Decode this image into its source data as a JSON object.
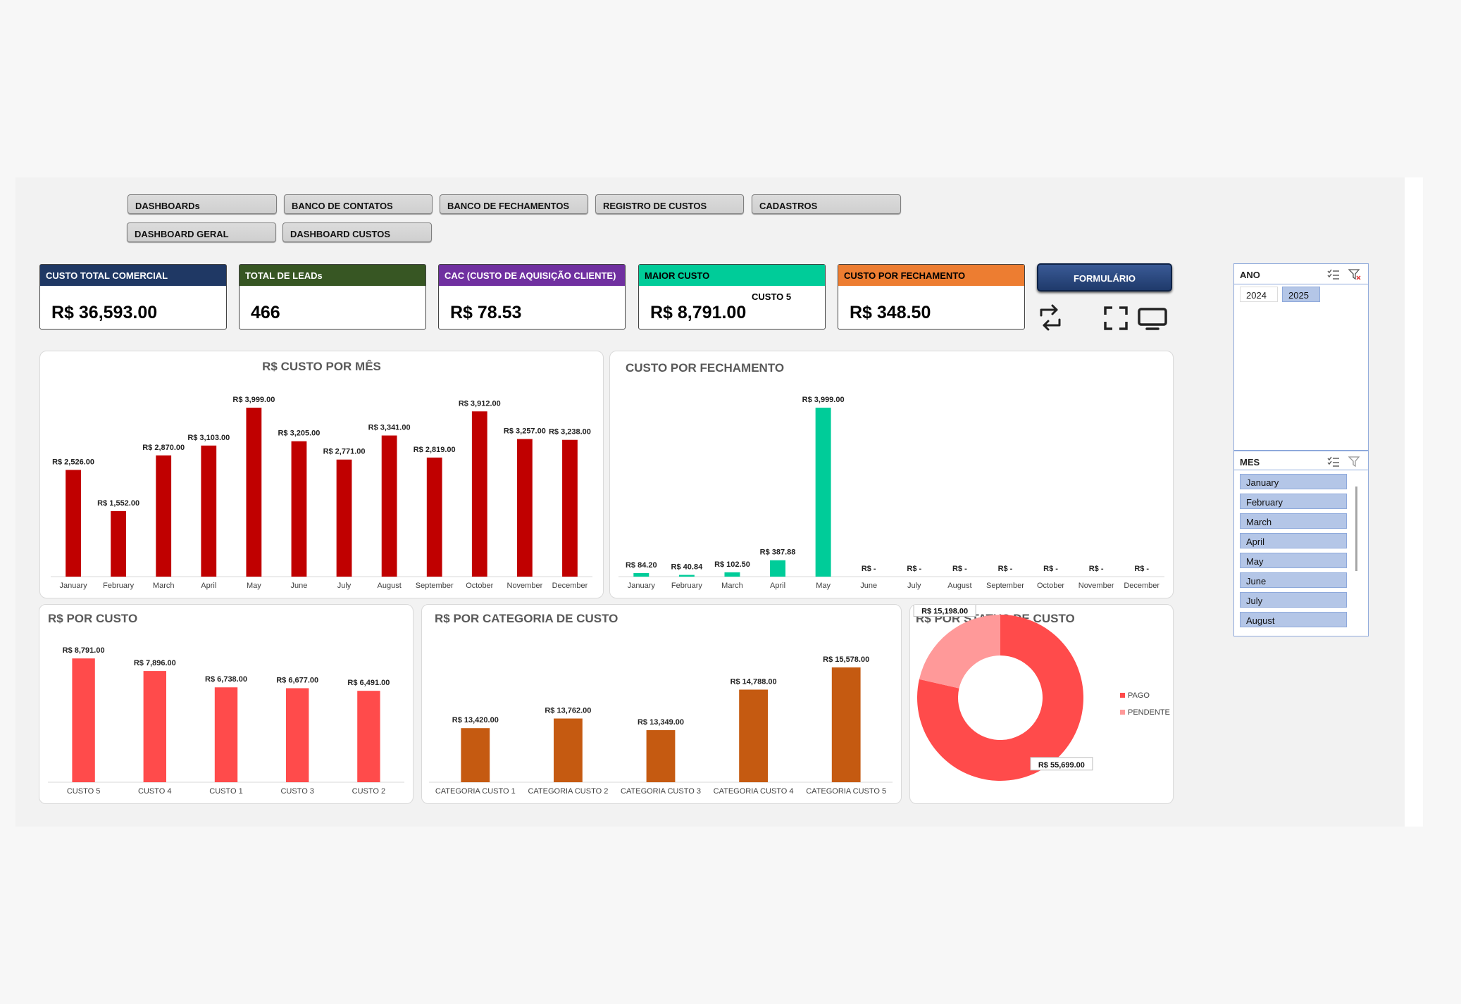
{
  "nav": {
    "row1": [
      "DASHBOARDs",
      "BANCO DE CONTATOS",
      "BANCO DE FECHAMENTOS",
      "REGISTRO DE CUSTOS",
      "CADASTROS"
    ],
    "row2": [
      "DASHBOARD GERAL",
      "DASHBOARD CUSTOS"
    ]
  },
  "kpis": [
    {
      "title": "CUSTO TOTAL COMERCIAL",
      "value": "R$ 36,593.00",
      "color": "#1f3864"
    },
    {
      "title": "TOTAL DE LEADs",
      "value": "466",
      "color": "#375623"
    },
    {
      "title": "CAC (CUSTO DE AQUISIÇÃO CLIENTE)",
      "value": "R$ 78.53",
      "color": "#7030a0"
    },
    {
      "title": "MAIOR CUSTO",
      "value": "R$ 8,791.00",
      "sub": "CUSTO 5",
      "color": "#00cc99",
      "dark": true
    },
    {
      "title": "CUSTO POR FECHAMENTO",
      "value": "R$ 348.50",
      "color": "#ed7d31",
      "dark": true
    }
  ],
  "form_button": "FORMULÁRIO",
  "icons": [
    "refresh-icon",
    "fullscreen-icon",
    "monitor-icon"
  ],
  "slicer_ano": {
    "title": "ANO",
    "items": [
      {
        "label": "2024",
        "selected": false
      },
      {
        "label": "2025",
        "selected": true
      }
    ]
  },
  "slicer_mes": {
    "title": "MES",
    "items": [
      "January",
      "February",
      "March",
      "April",
      "May",
      "June",
      "July",
      "August"
    ]
  },
  "chart_data": [
    {
      "id": "custo-mes",
      "type": "bar",
      "title": "R$ CUSTO POR MÊS",
      "color": "#c00000",
      "categories": [
        "January",
        "February",
        "March",
        "April",
        "May",
        "June",
        "July",
        "August",
        "September",
        "October",
        "November",
        "December"
      ],
      "values": [
        2526,
        1552,
        2870,
        3103,
        3999,
        3205,
        2771,
        3341,
        2819,
        3912,
        3257,
        3238
      ],
      "labels": [
        "R$ 2,526.00",
        "R$ 1,552.00",
        "R$ 2,870.00",
        "R$ 3,103.00",
        "R$ 3,999.00",
        "R$ 3,205.00",
        "R$ 2,771.00",
        "R$ 3,341.00",
        "R$ 2,819.00",
        "R$ 3,912.00",
        "R$ 3,257.00",
        "R$ 3,238.00"
      ],
      "ylim": [
        0,
        4000
      ]
    },
    {
      "id": "custo-fech",
      "type": "bar",
      "title": "CUSTO POR FECHAMENTO",
      "color": "#00cc99",
      "categories": [
        "January",
        "February",
        "March",
        "April",
        "May",
        "June",
        "July",
        "August",
        "September",
        "October",
        "November",
        "December"
      ],
      "values": [
        84.2,
        40.84,
        102.5,
        387.88,
        3999,
        0,
        0,
        0,
        0,
        0,
        0,
        0
      ],
      "labels": [
        "R$ 84.20",
        "R$ 40.84",
        "R$ 102.50",
        "R$ 387.88",
        "R$ 3,999.00",
        "R$ -",
        "R$ -",
        "R$ -",
        "R$ -",
        "R$ -",
        "R$ -",
        "R$ -"
      ],
      "ylim": [
        0,
        4000
      ]
    },
    {
      "id": "por-custo",
      "type": "bar",
      "title": "R$ POR CUSTO",
      "color": "#ff4b4b",
      "categories": [
        "CUSTO 5",
        "CUSTO 4",
        "CUSTO 1",
        "CUSTO 3",
        "CUSTO 2"
      ],
      "values": [
        8791,
        7896,
        6738,
        6677,
        6491
      ],
      "labels": [
        "R$ 8,791.00",
        "R$ 7,896.00",
        "R$ 6,738.00",
        "R$ 6,677.00",
        "R$ 6,491.00"
      ],
      "ylim": [
        0,
        9000
      ]
    },
    {
      "id": "por-categoria",
      "type": "bar",
      "title": "R$ POR CATEGORIA DE CUSTO",
      "color": "#c55a11",
      "categories": [
        "CATEGORIA CUSTO 1",
        "CATEGORIA CUSTO 2",
        "CATEGORIA CUSTO 3",
        "CATEGORIA CUSTO 4",
        "CATEGORIA CUSTO 5"
      ],
      "values": [
        13420,
        13762,
        13349,
        14788,
        15578
      ],
      "labels": [
        "R$ 13,420.00",
        "R$ 13,762.00",
        "R$ 13,349.00",
        "R$ 14,788.00",
        "R$ 15,578.00"
      ],
      "ylim": [
        11500,
        16000
      ]
    },
    {
      "id": "por-status",
      "type": "pie",
      "title": "R$ POR STATUS DE CUSTO",
      "categories": [
        "PAGO",
        "PENDENTE"
      ],
      "values": [
        55699,
        15198
      ],
      "labels": [
        "R$ 55,699.00",
        "R$ 15,198.00"
      ],
      "colors": [
        "#ff4b4b",
        "#ff9999"
      ],
      "legend": "right"
    }
  ]
}
